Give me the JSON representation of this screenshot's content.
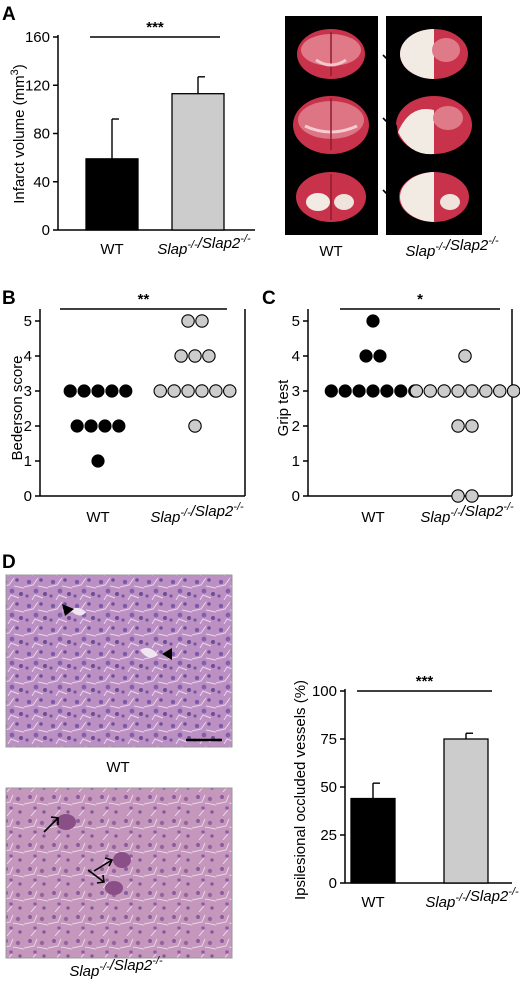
{
  "panels": {
    "A": "A",
    "B": "B",
    "C": "C",
    "D": "D"
  },
  "photo_labels": {
    "brain_wt": "WT",
    "brain_ko": "Slap-/-/Slap2-/-",
    "histo_wt": "WT",
    "histo_ko": "Slap-/-/Slap2-/-"
  },
  "colors": {
    "wt": "#000000",
    "ko": "#cccccc",
    "brain_healthy": "#c8324a",
    "infarct": "#f2ebe4",
    "he_stain": "#b98fbf"
  },
  "chart_data": [
    {
      "id": "A",
      "type": "bar",
      "categories": [
        "WT",
        "Slap-/-/Slap2-/-"
      ],
      "values": [
        59,
        113
      ],
      "errors": [
        33,
        14
      ],
      "ylabel": "Infarct volume (mm3)",
      "ylabel_main": "Infarct volume (mm",
      "ylabel_sup": "3",
      "ylabel_end": ")",
      "ylim": [
        0,
        160
      ],
      "yticks": [
        0,
        40,
        80,
        120,
        160
      ],
      "significance": "***"
    },
    {
      "id": "B",
      "type": "scatter",
      "categories": [
        "WT",
        "Slap-/-/Slap2-/-"
      ],
      "points": [
        [
          3,
          3,
          3,
          3,
          3,
          2,
          2,
          2,
          2,
          1
        ],
        [
          5,
          5,
          4,
          4,
          4,
          3,
          3,
          3,
          3,
          3,
          3,
          2
        ]
      ],
      "ylabel": "Bederson score",
      "ylim": [
        0,
        5
      ],
      "yticks": [
        0,
        1,
        2,
        3,
        4,
        5
      ],
      "significance": "**"
    },
    {
      "id": "C",
      "type": "scatter",
      "categories": [
        "WT",
        "Slap-/-/Slap2-/-"
      ],
      "points": [
        [
          5,
          4,
          4,
          3,
          3,
          3,
          3,
          3,
          3,
          3
        ],
        [
          4,
          3,
          3,
          3,
          3,
          3,
          3,
          3,
          3,
          2,
          2,
          0,
          0
        ]
      ],
      "ylabel": "Grip test",
      "ylim": [
        0,
        5
      ],
      "yticks": [
        0,
        1,
        2,
        3,
        4,
        5
      ],
      "significance": "*"
    },
    {
      "id": "D",
      "type": "bar",
      "categories": [
        "WT",
        "Slap-/-/Slap2-/-"
      ],
      "values": [
        44,
        75
      ],
      "errors": [
        8,
        3
      ],
      "ylabel": "Ipsilesional occluded vessels (%)",
      "ylim": [
        0,
        100
      ],
      "yticks": [
        0,
        25,
        50,
        75,
        100
      ],
      "significance": "***"
    }
  ]
}
